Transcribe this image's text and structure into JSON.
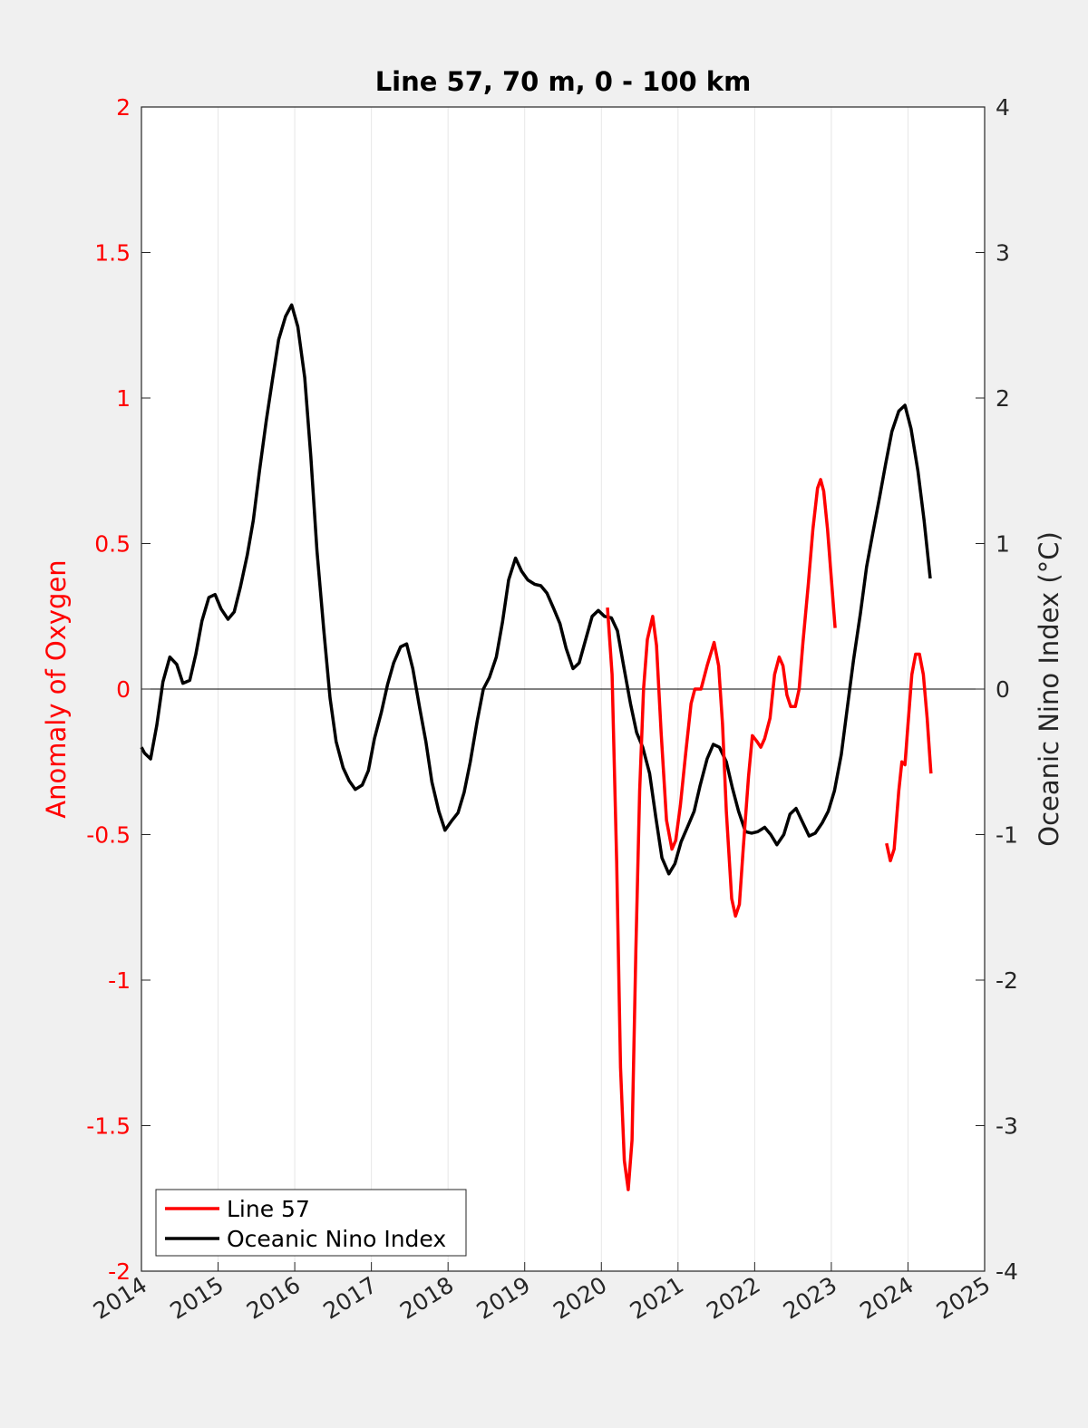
{
  "chart_data": {
    "type": "line",
    "title": "Line 57, 70 m, 0 - 100 km",
    "ylabel_left": "Anomaly of Oxygen",
    "ylabel_right": "Oceanic Nino Index (°C)",
    "xlim": [
      2014,
      2025
    ],
    "ylim_left": [
      -2,
      2
    ],
    "ylim_right": [
      -4,
      4
    ],
    "x_ticks": [
      2014,
      2015,
      2016,
      2017,
      2018,
      2019,
      2020,
      2021,
      2022,
      2023,
      2024,
      2025
    ],
    "y_ticks_left": [
      2,
      1.5,
      1,
      0.5,
      0,
      -0.5,
      -1,
      -1.5,
      -2
    ],
    "y_ticks_right": [
      4,
      3,
      2,
      1,
      0,
      -1,
      -2,
      -3,
      -4
    ],
    "x_grid": true,
    "zero_line": true,
    "legend_position": "bottom-left",
    "colors": {
      "line57": "#ff0000",
      "oni": "#000000",
      "left_axis": "#ff0000",
      "right_axis": "#262626"
    },
    "series": [
      {
        "name": "Line 57",
        "axis": "left",
        "color": "#ff0000",
        "segments": [
          [
            [
              2020.08,
              0.28
            ],
            [
              2020.14,
              0.05
            ],
            [
              2020.2,
              -0.6
            ],
            [
              2020.25,
              -1.3
            ],
            [
              2020.3,
              -1.62
            ],
            [
              2020.35,
              -1.72
            ],
            [
              2020.4,
              -1.55
            ],
            [
              2020.45,
              -0.9
            ],
            [
              2020.5,
              -0.35
            ],
            [
              2020.55,
              0.0
            ],
            [
              2020.6,
              0.17
            ],
            [
              2020.67,
              0.25
            ],
            [
              2020.72,
              0.15
            ],
            [
              2020.78,
              -0.15
            ],
            [
              2020.85,
              -0.45
            ],
            [
              2020.92,
              -0.55
            ],
            [
              2020.97,
              -0.52
            ],
            [
              2021.03,
              -0.4
            ],
            [
              2021.1,
              -0.22
            ],
            [
              2021.17,
              -0.05
            ],
            [
              2021.22,
              0.0
            ],
            [
              2021.3,
              0.0
            ],
            [
              2021.38,
              0.08
            ],
            [
              2021.47,
              0.16
            ],
            [
              2021.53,
              0.08
            ],
            [
              2021.58,
              -0.12
            ],
            [
              2021.63,
              -0.42
            ],
            [
              2021.7,
              -0.72
            ],
            [
              2021.75,
              -0.78
            ],
            [
              2021.8,
              -0.74
            ],
            [
              2021.85,
              -0.55
            ],
            [
              2021.92,
              -0.3
            ],
            [
              2021.97,
              -0.16
            ],
            [
              2022.03,
              -0.18
            ],
            [
              2022.08,
              -0.2
            ],
            [
              2022.13,
              -0.17
            ],
            [
              2022.2,
              -0.1
            ],
            [
              2022.26,
              0.05
            ],
            [
              2022.32,
              0.11
            ],
            [
              2022.37,
              0.08
            ],
            [
              2022.42,
              -0.02
            ],
            [
              2022.47,
              -0.06
            ],
            [
              2022.53,
              -0.06
            ],
            [
              2022.58,
              0.0
            ],
            [
              2022.63,
              0.16
            ],
            [
              2022.7,
              0.36
            ],
            [
              2022.76,
              0.55
            ],
            [
              2022.82,
              0.69
            ],
            [
              2022.86,
              0.72
            ],
            [
              2022.9,
              0.68
            ],
            [
              2022.95,
              0.55
            ],
            [
              2023.0,
              0.38
            ],
            [
              2023.05,
              0.21
            ]
          ],
          [
            [
              2023.72,
              -0.53
            ],
            [
              2023.77,
              -0.59
            ],
            [
              2023.82,
              -0.55
            ],
            [
              2023.88,
              -0.35
            ],
            [
              2023.92,
              -0.25
            ],
            [
              2023.96,
              -0.26
            ],
            [
              2024.0,
              -0.12
            ],
            [
              2024.05,
              0.05
            ],
            [
              2024.1,
              0.12
            ],
            [
              2024.15,
              0.12
            ],
            [
              2024.2,
              0.05
            ],
            [
              2024.25,
              -0.1
            ],
            [
              2024.3,
              -0.29
            ]
          ]
        ]
      },
      {
        "name": "Oceanic Nino Index",
        "axis": "right",
        "color": "#000000",
        "values": [
          [
            2014.0,
            -0.4
          ],
          [
            2014.04,
            -0.44
          ],
          [
            2014.12,
            -0.48
          ],
          [
            2014.2,
            -0.25
          ],
          [
            2014.28,
            0.05
          ],
          [
            2014.37,
            0.22
          ],
          [
            2014.46,
            0.17
          ],
          [
            2014.54,
            0.04
          ],
          [
            2014.63,
            0.06
          ],
          [
            2014.71,
            0.24
          ],
          [
            2014.79,
            0.47
          ],
          [
            2014.88,
            0.63
          ],
          [
            2014.96,
            0.65
          ],
          [
            2015.04,
            0.55
          ],
          [
            2015.13,
            0.48
          ],
          [
            2015.21,
            0.53
          ],
          [
            2015.29,
            0.7
          ],
          [
            2015.38,
            0.92
          ],
          [
            2015.46,
            1.16
          ],
          [
            2015.54,
            1.5
          ],
          [
            2015.63,
            1.85
          ],
          [
            2015.71,
            2.13
          ],
          [
            2015.79,
            2.4
          ],
          [
            2015.88,
            2.56
          ],
          [
            2015.96,
            2.64
          ],
          [
            2016.04,
            2.49
          ],
          [
            2016.13,
            2.14
          ],
          [
            2016.21,
            1.6
          ],
          [
            2016.29,
            0.95
          ],
          [
            2016.38,
            0.4
          ],
          [
            2016.46,
            -0.06
          ],
          [
            2016.54,
            -0.36
          ],
          [
            2016.63,
            -0.54
          ],
          [
            2016.71,
            -0.63
          ],
          [
            2016.79,
            -0.69
          ],
          [
            2016.88,
            -0.66
          ],
          [
            2016.96,
            -0.56
          ],
          [
            2017.04,
            -0.34
          ],
          [
            2017.13,
            -0.16
          ],
          [
            2017.21,
            0.03
          ],
          [
            2017.29,
            0.18
          ],
          [
            2017.38,
            0.29
          ],
          [
            2017.46,
            0.31
          ],
          [
            2017.54,
            0.14
          ],
          [
            2017.63,
            -0.13
          ],
          [
            2017.71,
            -0.36
          ],
          [
            2017.79,
            -0.64
          ],
          [
            2017.88,
            -0.84
          ],
          [
            2017.96,
            -0.97
          ],
          [
            2018.04,
            -0.91
          ],
          [
            2018.13,
            -0.85
          ],
          [
            2018.21,
            -0.71
          ],
          [
            2018.29,
            -0.5
          ],
          [
            2018.38,
            -0.22
          ],
          [
            2018.46,
            0.0
          ],
          [
            2018.54,
            0.08
          ],
          [
            2018.63,
            0.22
          ],
          [
            2018.71,
            0.46
          ],
          [
            2018.79,
            0.75
          ],
          [
            2018.88,
            0.9
          ],
          [
            2018.96,
            0.81
          ],
          [
            2019.04,
            0.75
          ],
          [
            2019.13,
            0.72
          ],
          [
            2019.21,
            0.71
          ],
          [
            2019.29,
            0.66
          ],
          [
            2019.38,
            0.55
          ],
          [
            2019.46,
            0.45
          ],
          [
            2019.54,
            0.28
          ],
          [
            2019.63,
            0.14
          ],
          [
            2019.71,
            0.18
          ],
          [
            2019.79,
            0.33
          ],
          [
            2019.88,
            0.5
          ],
          [
            2019.96,
            0.54
          ],
          [
            2020.04,
            0.5
          ],
          [
            2020.13,
            0.49
          ],
          [
            2020.21,
            0.4
          ],
          [
            2020.29,
            0.16
          ],
          [
            2020.38,
            -0.1
          ],
          [
            2020.46,
            -0.3
          ],
          [
            2020.54,
            -0.4
          ],
          [
            2020.63,
            -0.58
          ],
          [
            2020.71,
            -0.88
          ],
          [
            2020.79,
            -1.16
          ],
          [
            2020.88,
            -1.27
          ],
          [
            2020.96,
            -1.2
          ],
          [
            2021.04,
            -1.05
          ],
          [
            2021.13,
            -0.94
          ],
          [
            2021.21,
            -0.84
          ],
          [
            2021.29,
            -0.66
          ],
          [
            2021.38,
            -0.48
          ],
          [
            2021.46,
            -0.38
          ],
          [
            2021.54,
            -0.4
          ],
          [
            2021.63,
            -0.5
          ],
          [
            2021.71,
            -0.68
          ],
          [
            2021.79,
            -0.84
          ],
          [
            2021.88,
            -0.98
          ],
          [
            2021.96,
            -0.99
          ],
          [
            2022.04,
            -0.98
          ],
          [
            2022.13,
            -0.95
          ],
          [
            2022.21,
            -1.0
          ],
          [
            2022.29,
            -1.07
          ],
          [
            2022.38,
            -1.0
          ],
          [
            2022.46,
            -0.86
          ],
          [
            2022.54,
            -0.82
          ],
          [
            2022.63,
            -0.92
          ],
          [
            2022.71,
            -1.01
          ],
          [
            2022.79,
            -0.99
          ],
          [
            2022.88,
            -0.92
          ],
          [
            2022.96,
            -0.84
          ],
          [
            2023.04,
            -0.7
          ],
          [
            2023.13,
            -0.45
          ],
          [
            2023.21,
            -0.12
          ],
          [
            2023.29,
            0.2
          ],
          [
            2023.38,
            0.52
          ],
          [
            2023.46,
            0.84
          ],
          [
            2023.54,
            1.07
          ],
          [
            2023.63,
            1.32
          ],
          [
            2023.71,
            1.55
          ],
          [
            2023.79,
            1.77
          ],
          [
            2023.88,
            1.91
          ],
          [
            2023.96,
            1.95
          ],
          [
            2024.04,
            1.79
          ],
          [
            2024.13,
            1.5
          ],
          [
            2024.21,
            1.16
          ],
          [
            2024.29,
            0.76
          ]
        ]
      }
    ]
  }
}
